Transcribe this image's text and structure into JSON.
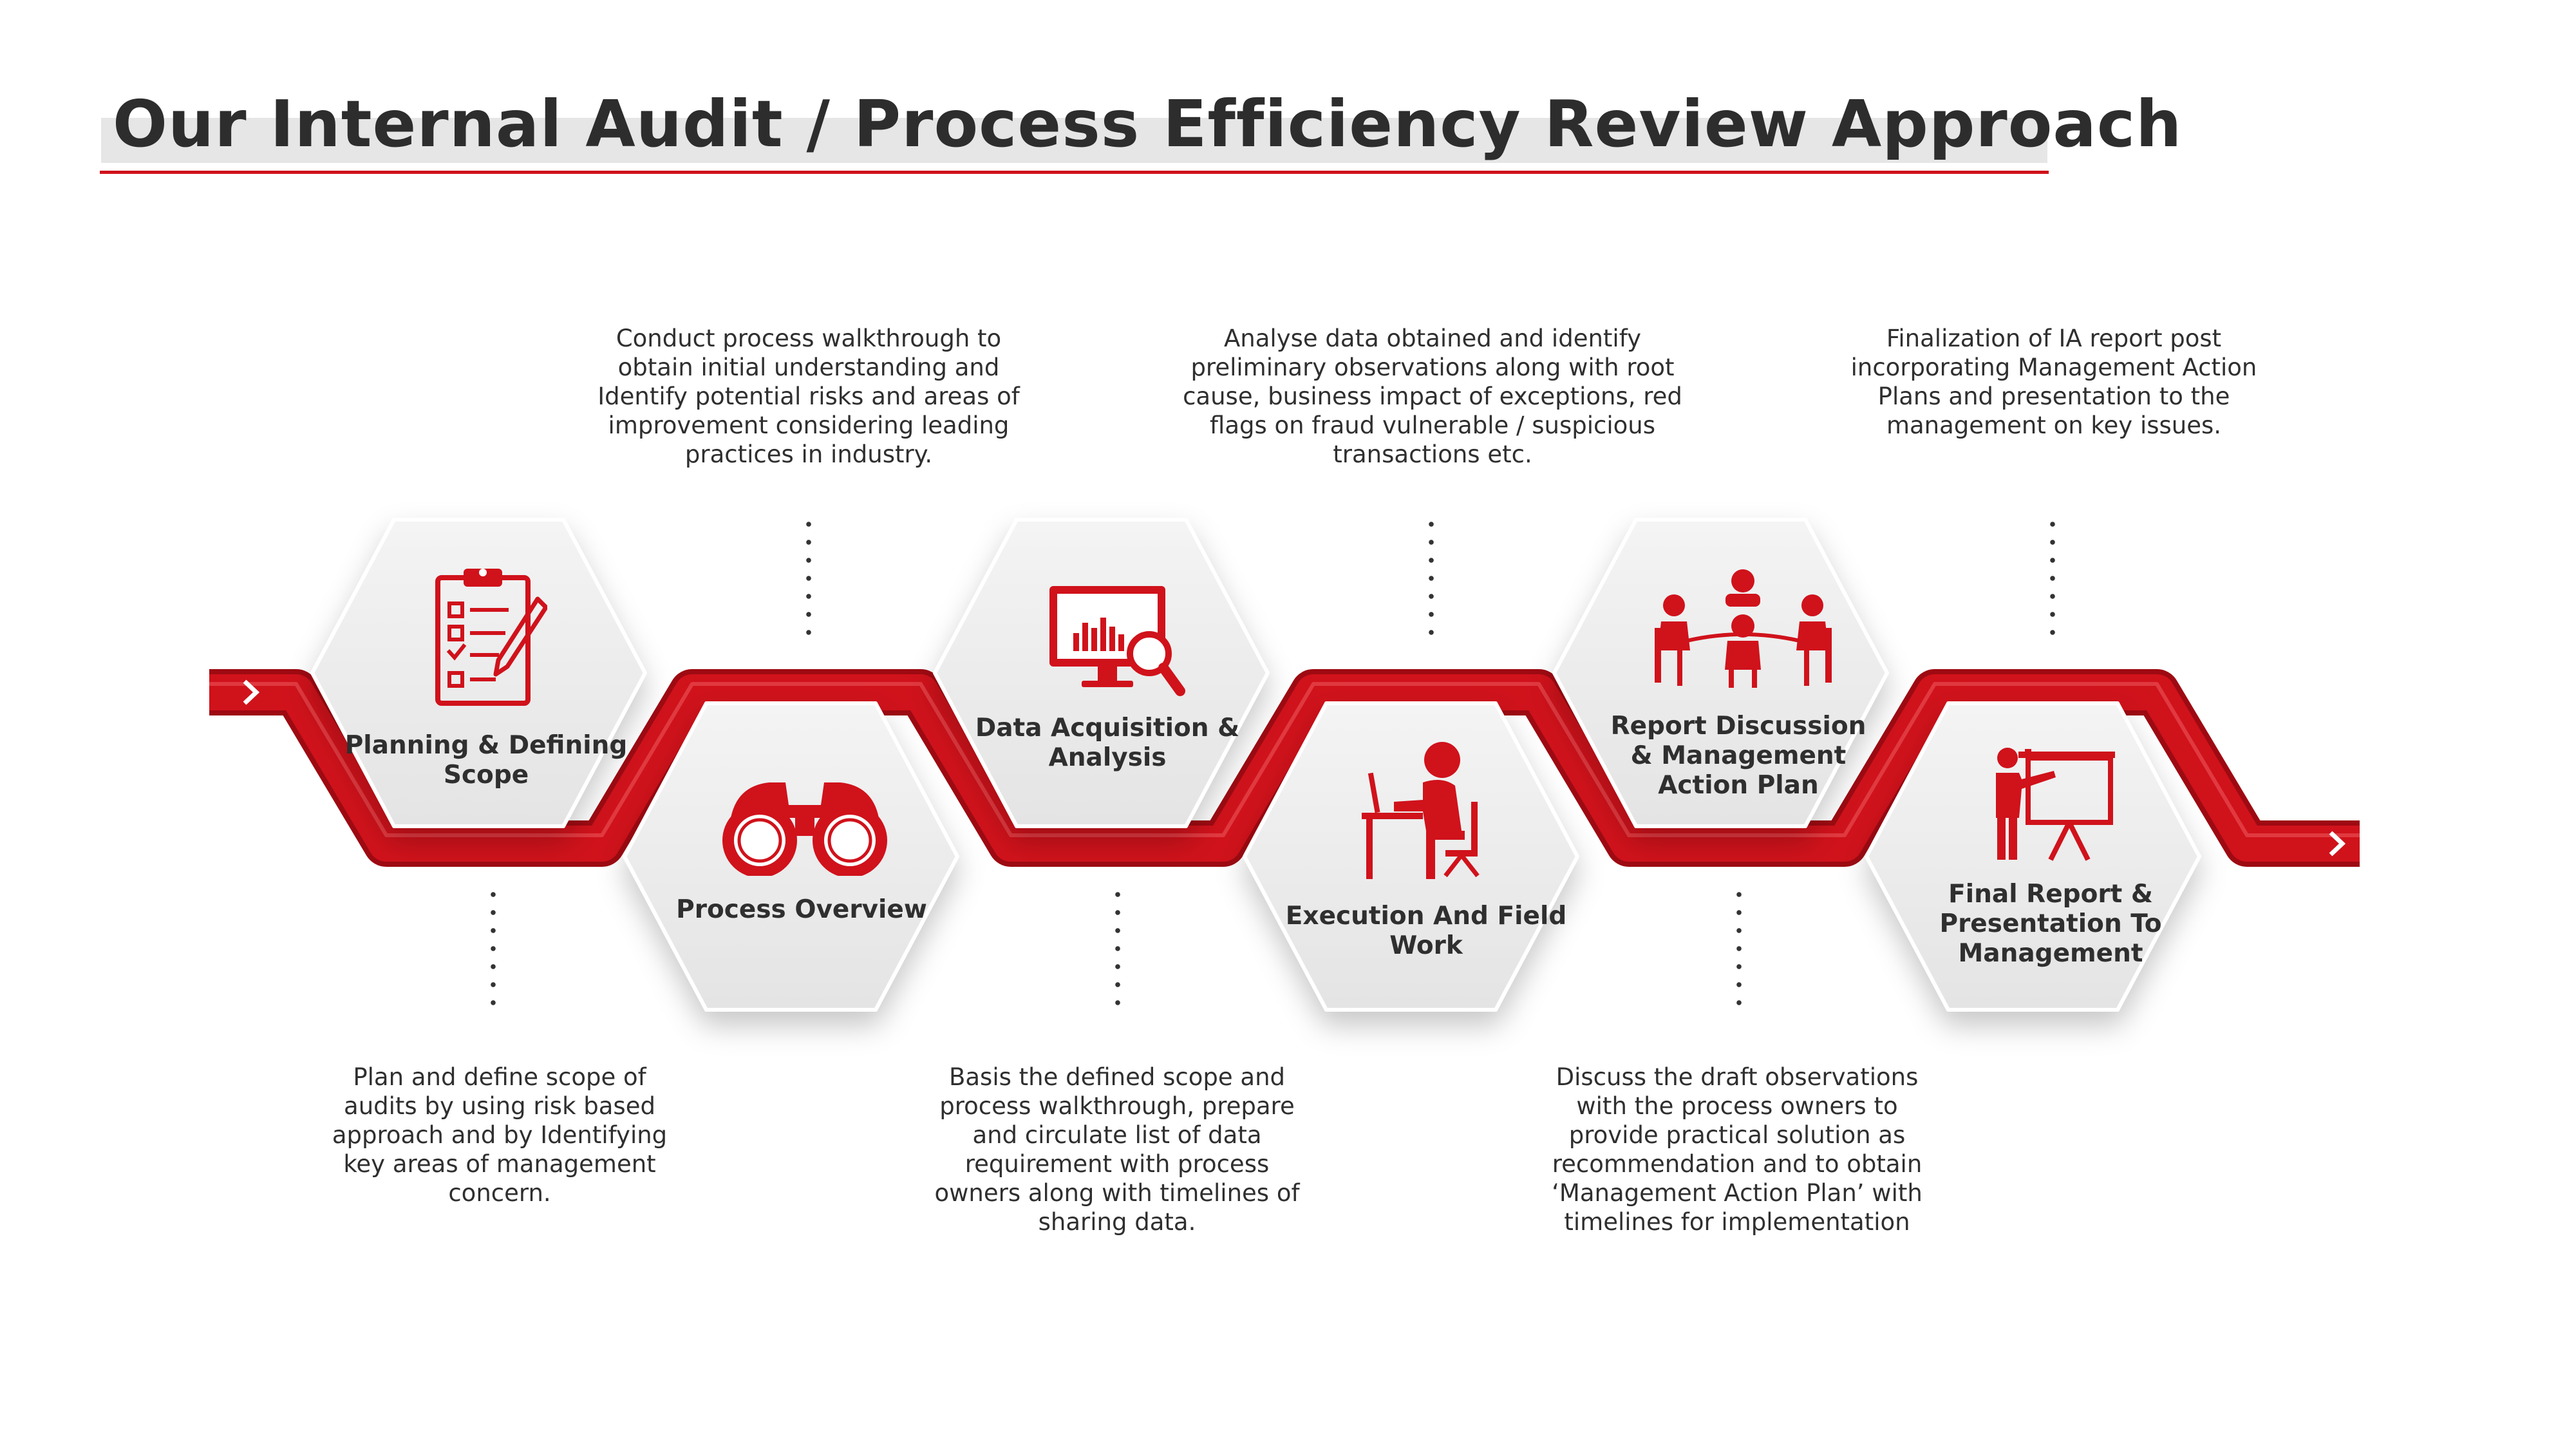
{
  "title": "Our Internal Audit / Process Efficiency Review Approach",
  "colors": {
    "accent": "#d0121b",
    "accent_dark": "#9e0a12",
    "hex_fill": "#eeeeee",
    "text": "#2d2d2d"
  },
  "steps": [
    {
      "label": "Planning & Defining Scope",
      "icon": "clipboard-checklist-icon",
      "description": "Plan and define scope of audits by using risk based approach and by Identifying key areas of management concern."
    },
    {
      "label": "Process Overview",
      "icon": "binoculars-icon",
      "description": "Conduct process walkthrough to obtain initial understanding and Identify potential risks and areas of improvement considering leading practices in industry."
    },
    {
      "label": "Data Acquisition & Analysis",
      "icon": "monitor-chart-magnifier-icon",
      "description": "Basis the defined scope and process walkthrough, prepare and circulate list of data requirement with process owners along with timelines of sharing data."
    },
    {
      "label": "Execution And Field Work",
      "icon": "person-at-desk-icon",
      "description": "Analyse data obtained and identify preliminary observations along with root cause, business impact of exceptions, red flags on fraud vulnerable / suspicious transactions etc."
    },
    {
      "label": "Report Discussion & Management Action Plan",
      "icon": "meeting-table-icon",
      "description": "Discuss the draft observations with the process owners to provide practical solution as recommendation and to obtain ‘Management Action Plan’ with timelines for implementation"
    },
    {
      "label": "Final Report & Presentation To Management",
      "icon": "presentation-board-icon",
      "description": "Finalization of IA report post incorporating Management Action Plans and presentation to the management on key issues."
    }
  ]
}
